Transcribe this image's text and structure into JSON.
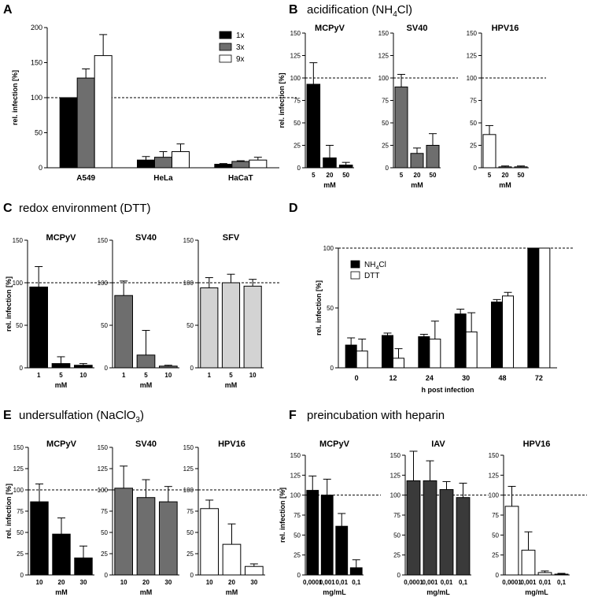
{
  "figure": {
    "panels": {
      "A": {
        "letter": "A",
        "title": ""
      },
      "B": {
        "letter": "B",
        "title_main": "acidification (NH",
        "title_sub": "4",
        "title_end": "Cl)"
      },
      "C": {
        "letter": "C",
        "title": "redox environment (DTT)"
      },
      "D": {
        "letter": "D",
        "title": ""
      },
      "E": {
        "letter": "E",
        "title_main": "undersulfation (NaClO",
        "title_sub": "3",
        "title_end": ")"
      },
      "F": {
        "letter": "F",
        "title": "preincubation with heparin"
      }
    },
    "ylabel": "rel. infection [%]",
    "ylabel_D": "rel. infection [%]",
    "legend_A": [
      "1x",
      "3x",
      "9x"
    ],
    "legend_D": [
      {
        "main": "NH",
        "sub": "4",
        "end": "Cl"
      },
      {
        "main": "DTT",
        "sub": "",
        "end": ""
      }
    ],
    "colors": {
      "black": "#000000",
      "dark_gray": "#6e6e6e",
      "white": "#ffffff",
      "light_gray": "#d3d3d3",
      "gray_F": "#3a3a3a"
    }
  },
  "chart_data": [
    {
      "id": "A",
      "type": "bar",
      "title": "",
      "xlabel": "",
      "ylabel": "rel. infection [%]",
      "ylim": [
        0,
        200
      ],
      "yticks": [
        0,
        50,
        100,
        150,
        200
      ],
      "reference_line": 100,
      "categories": [
        "A549",
        "HeLa",
        "HaCaT"
      ],
      "series": [
        {
          "name": "1x",
          "values": [
            100,
            11,
            5
          ],
          "errors": [
            0,
            5,
            1
          ],
          "color": "#000000"
        },
        {
          "name": "3x",
          "values": [
            128,
            15,
            9
          ],
          "errors": [
            13,
            8,
            1
          ],
          "color": "#6e6e6e"
        },
        {
          "name": "9x",
          "values": [
            160,
            23,
            11
          ],
          "errors": [
            30,
            11,
            4
          ],
          "color": "#ffffff"
        }
      ]
    },
    {
      "id": "B1",
      "type": "bar",
      "title": "MCPyV",
      "xlabel": "mM",
      "ylabel": "rel. infection [%]",
      "ylim": [
        0,
        150
      ],
      "yticks": [
        0,
        25,
        50,
        75,
        100,
        125,
        150
      ],
      "reference_line": 100,
      "categories": [
        "5",
        "20",
        "50"
      ],
      "values": [
        93,
        11,
        3
      ],
      "errors": [
        24,
        14,
        3
      ],
      "color": "#000000"
    },
    {
      "id": "B2",
      "type": "bar",
      "title": "SV40",
      "xlabel": "mM",
      "ylabel": "",
      "ylim": [
        0,
        150
      ],
      "yticks": [
        0,
        25,
        50,
        75,
        100,
        125,
        150
      ],
      "reference_line": 100,
      "categories": [
        "5",
        "20",
        "50"
      ],
      "values": [
        90,
        16,
        25
      ],
      "errors": [
        14,
        6,
        13
      ],
      "color": "#6e6e6e"
    },
    {
      "id": "B3",
      "type": "bar",
      "title": "HPV16",
      "xlabel": "mM",
      "ylabel": "",
      "ylim": [
        0,
        150
      ],
      "yticks": [
        0,
        25,
        50,
        75,
        100,
        125,
        150
      ],
      "reference_line": 100,
      "categories": [
        "5",
        "20",
        "50"
      ],
      "values": [
        37,
        1,
        1
      ],
      "errors": [
        10,
        1,
        1
      ],
      "color": "#ffffff"
    },
    {
      "id": "C1",
      "type": "bar",
      "title": "MCPyV",
      "xlabel": "mM",
      "ylabel": "rel. infection [%]",
      "ylim": [
        0,
        150
      ],
      "yticks": [
        0,
        50,
        100,
        150
      ],
      "reference_line": 100,
      "categories": [
        "1",
        "5",
        "10"
      ],
      "values": [
        95,
        5,
        3
      ],
      "errors": [
        24,
        8,
        2
      ],
      "color": "#000000"
    },
    {
      "id": "C2",
      "type": "bar",
      "title": "SV40",
      "xlabel": "mM",
      "ylabel": "",
      "ylim": [
        0,
        150
      ],
      "yticks": [
        0,
        50,
        100,
        150
      ],
      "reference_line": 100,
      "categories": [
        "1",
        "5",
        "10"
      ],
      "values": [
        85,
        15,
        2
      ],
      "errors": [
        17,
        29,
        1
      ],
      "color": "#6e6e6e"
    },
    {
      "id": "C3",
      "type": "bar",
      "title": "SFV",
      "xlabel": "mM",
      "ylabel": "",
      "ylim": [
        0,
        150
      ],
      "yticks": [
        0,
        50,
        100,
        150
      ],
      "reference_line": 100,
      "categories": [
        "1",
        "5",
        "10"
      ],
      "values": [
        94,
        100,
        96
      ],
      "errors": [
        12,
        10,
        8
      ],
      "color": "#d3d3d3"
    },
    {
      "id": "D",
      "type": "bar",
      "title": "",
      "xlabel": "h post infection",
      "ylabel": "rel. infection [%]",
      "ylim": [
        0,
        100
      ],
      "yticks": [
        0,
        50,
        100
      ],
      "reference_line": 100,
      "categories": [
        "0",
        "12",
        "24",
        "30",
        "48",
        "72"
      ],
      "series": [
        {
          "name": "NH4Cl",
          "values": [
            19,
            27,
            26,
            45,
            55,
            100
          ],
          "errors": [
            6,
            2,
            2,
            4,
            2,
            0
          ],
          "color": "#000000"
        },
        {
          "name": "DTT",
          "values": [
            14,
            8,
            24,
            30,
            60,
            100
          ],
          "errors": [
            10,
            8,
            15,
            16,
            3,
            0
          ],
          "color": "#ffffff"
        }
      ]
    },
    {
      "id": "E1",
      "type": "bar",
      "title": "MCPyV",
      "xlabel": "mM",
      "ylabel": "rel. infection [%]",
      "ylim": [
        0,
        150
      ],
      "yticks": [
        0,
        25,
        50,
        75,
        100,
        125,
        150
      ],
      "reference_line": 100,
      "categories": [
        "10",
        "20",
        "30"
      ],
      "values": [
        86,
        48,
        20
      ],
      "errors": [
        21,
        19,
        14
      ],
      "color": "#000000"
    },
    {
      "id": "E2",
      "type": "bar",
      "title": "SV40",
      "xlabel": "mM",
      "ylabel": "",
      "ylim": [
        0,
        150
      ],
      "yticks": [
        0,
        25,
        50,
        75,
        100,
        125,
        150
      ],
      "reference_line": 100,
      "categories": [
        "10",
        "20",
        "30"
      ],
      "values": [
        102,
        91,
        86
      ],
      "errors": [
        26,
        21,
        18
      ],
      "color": "#6e6e6e"
    },
    {
      "id": "E3",
      "type": "bar",
      "title": "HPV16",
      "xlabel": "mM",
      "ylabel": "",
      "ylim": [
        0,
        150
      ],
      "yticks": [
        0,
        25,
        50,
        75,
        100,
        125,
        150
      ],
      "reference_line": 100,
      "categories": [
        "10",
        "20",
        "30"
      ],
      "values": [
        78,
        36,
        10
      ],
      "errors": [
        10,
        24,
        3
      ],
      "color": "#ffffff"
    },
    {
      "id": "F1",
      "type": "bar",
      "title": "MCPyV",
      "xlabel": "mg/mL",
      "ylabel": "rel. infection [%]",
      "ylim": [
        0,
        150
      ],
      "yticks": [
        0,
        25,
        50,
        75,
        100,
        125,
        150
      ],
      "reference_line": 100,
      "categories": [
        "0,0001",
        "0,001",
        "0,01",
        "0,1"
      ],
      "values": [
        106,
        100,
        61,
        9
      ],
      "errors": [
        18,
        20,
        16,
        10
      ],
      "color": "#000000"
    },
    {
      "id": "F2",
      "type": "bar",
      "title": "IAV",
      "xlabel": "mg/mL",
      "ylabel": "",
      "ylim": [
        0,
        150
      ],
      "yticks": [
        0,
        25,
        50,
        75,
        100,
        125,
        150
      ],
      "reference_line": 100,
      "categories": [
        "0,0001",
        "0,001",
        "0,01",
        "0,1"
      ],
      "values": [
        118,
        118,
        107,
        97
      ],
      "errors": [
        37,
        25,
        10,
        18
      ],
      "color": "#3a3a3a"
    },
    {
      "id": "F3",
      "type": "bar",
      "title": "HPV16",
      "xlabel": "mg/mL",
      "ylabel": "",
      "ylim": [
        0,
        150
      ],
      "yticks": [
        0,
        25,
        50,
        75,
        100,
        125,
        150
      ],
      "reference_line": 100,
      "categories": [
        "0,0001",
        "0,001",
        "0,01",
        "0,1"
      ],
      "values": [
        86,
        31,
        3,
        1
      ],
      "errors": [
        25,
        23,
        2,
        1
      ],
      "color": "#ffffff"
    }
  ]
}
